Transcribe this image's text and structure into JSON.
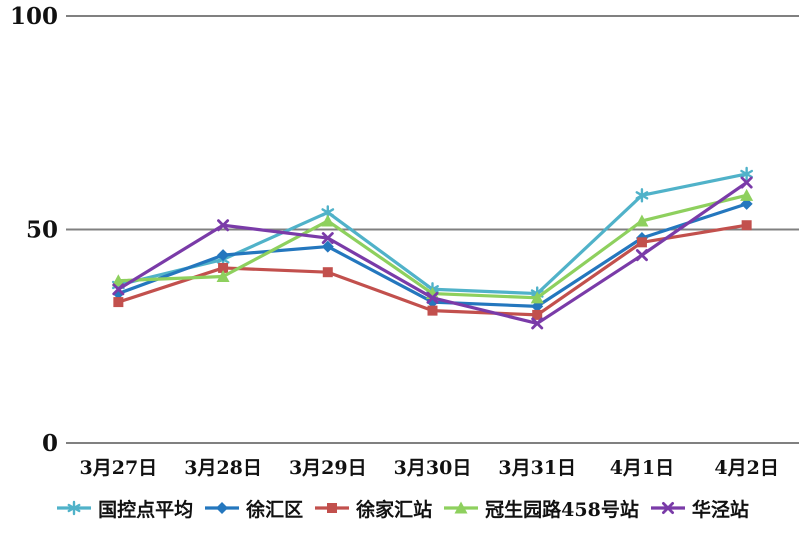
{
  "chart_data": {
    "type": "line",
    "title": "",
    "xlabel": "",
    "ylabel": "",
    "ylim": [
      0,
      100
    ],
    "yticks": [
      0,
      50,
      100
    ],
    "grid": "horizontal-only",
    "legend_position": "bottom",
    "gridline_color": "#808080",
    "text_color": "#111111",
    "categories": [
      "3月27日",
      "3月28日",
      "3月29日",
      "3月30日",
      "3月31日",
      "4月1日",
      "4月2日"
    ],
    "series": [
      {
        "name": "国控点平均",
        "color": "#50B2C9",
        "marker": "asterisk",
        "values": [
          37,
          43,
          54,
          36,
          35,
          58,
          63
        ]
      },
      {
        "name": "徐汇区",
        "color": "#2477BE",
        "marker": "diamond",
        "values": [
          35,
          44,
          46,
          33,
          32,
          48,
          56
        ]
      },
      {
        "name": "徐家汇站",
        "color": "#C2504D",
        "marker": "square",
        "values": [
          33,
          41,
          40,
          31,
          30,
          47,
          51
        ]
      },
      {
        "name": "冠生园路458号站",
        "color": "#8ED05E",
        "marker": "triangle",
        "values": [
          38,
          39,
          52,
          35,
          34,
          52,
          58
        ]
      },
      {
        "name": "华泾站",
        "color": "#7A3BA8",
        "marker": "x",
        "values": [
          36,
          51,
          48,
          34,
          28,
          44,
          61
        ]
      }
    ]
  }
}
